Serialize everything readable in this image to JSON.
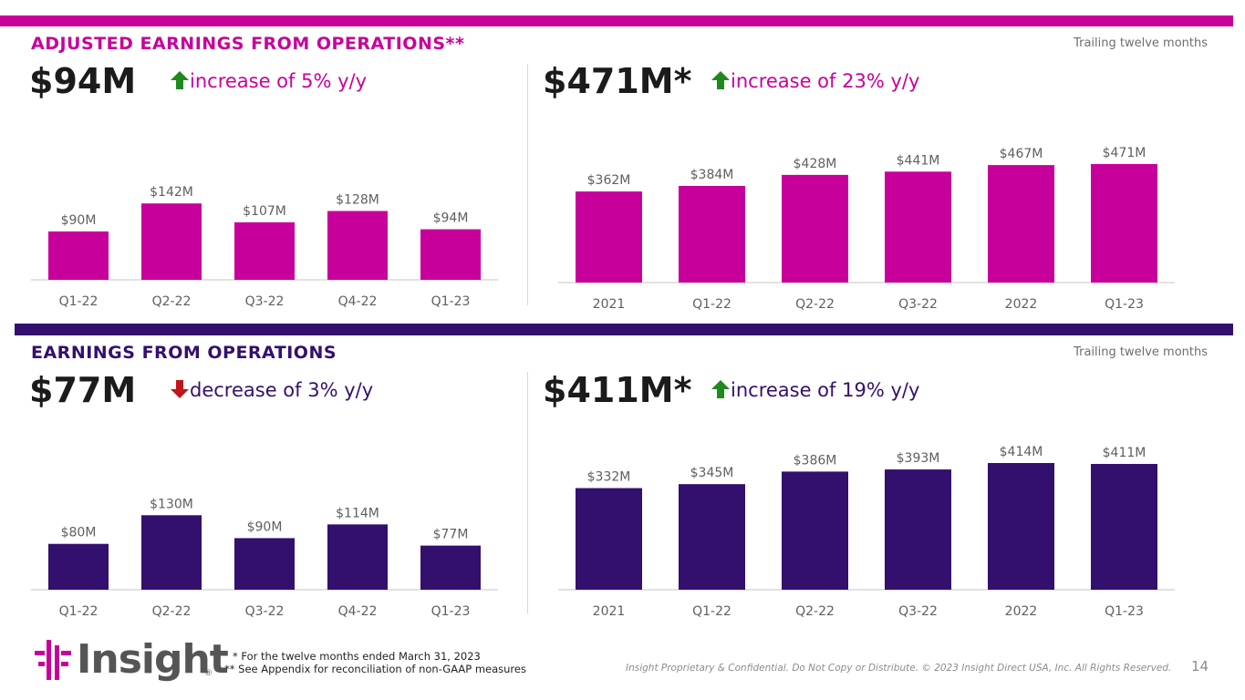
{
  "colors": {
    "magenta": "#c8009b",
    "purple": "#33106e",
    "up": "#1e8a1e",
    "down": "#c0171a"
  },
  "sections": [
    {
      "heading": "ADJUSTED EARNINGS FROM OPERATIONS**",
      "trailing_label": "Trailing twelve months",
      "quarterly": {
        "big_value": "$94M",
        "change_text": "increase of 5% y/y",
        "direction": "up"
      },
      "ttm": {
        "big_value": "$471M*",
        "change_text": "increase of 23% y/y",
        "direction": "up"
      }
    },
    {
      "heading": "EARNINGS FROM OPERATIONS",
      "trailing_label": "Trailing twelve months",
      "quarterly": {
        "big_value": "$77M",
        "change_text": "decrease of 3% y/y",
        "direction": "down"
      },
      "ttm": {
        "big_value": "$411M*",
        "change_text": "increase of 19% y/y",
        "direction": "up"
      }
    }
  ],
  "chart_data": [
    {
      "type": "bar",
      "title": "Adjusted earnings from operations (quarterly)",
      "categories": [
        "Q1-22",
        "Q2-22",
        "Q3-22",
        "Q4-22",
        "Q1-23"
      ],
      "values": [
        90,
        142,
        107,
        128,
        94
      ],
      "labels": [
        "$90M",
        "$142M",
        "$107M",
        "$128M",
        "$94M"
      ],
      "ylim": [
        0,
        200
      ],
      "color": "#c8009b"
    },
    {
      "type": "bar",
      "title": "Adjusted earnings from operations (trailing twelve months)",
      "categories": [
        "2021",
        "Q1-22",
        "Q2-22",
        "Q3-22",
        "2022",
        "Q1-23"
      ],
      "values": [
        362,
        384,
        428,
        441,
        467,
        471
      ],
      "labels": [
        "$362M",
        "$384M",
        "$428M",
        "$441M",
        "$467M",
        "$471M"
      ],
      "ylim": [
        0,
        471
      ],
      "color": "#c8009b"
    },
    {
      "type": "bar",
      "title": "Earnings from operations (quarterly)",
      "categories": [
        "Q1-22",
        "Q2-22",
        "Q3-22",
        "Q4-22",
        "Q1-23"
      ],
      "values": [
        80,
        130,
        90,
        114,
        77
      ],
      "labels": [
        "$80M",
        "$130M",
        "$90M",
        "$114M",
        "$77M"
      ],
      "ylim": [
        0,
        175
      ],
      "color": "#33106e"
    },
    {
      "type": "bar",
      "title": "Earnings from operations (trailing twelve months)",
      "categories": [
        "2021",
        "Q1-22",
        "Q2-22",
        "Q3-22",
        "2022",
        "Q1-23"
      ],
      "values": [
        332,
        345,
        386,
        393,
        414,
        411
      ],
      "labels": [
        "$332M",
        "$345M",
        "$386M",
        "$393M",
        "$414M",
        "$411M"
      ],
      "ylim": [
        0,
        414
      ],
      "color": "#33106e"
    }
  ],
  "footer": {
    "logo_text": "Insight",
    "logo_mark": "®",
    "note1": "* For the twelve months ended March 31, 2023",
    "note2": "** See Appendix for reconciliation of non-GAAP measures",
    "legal": "Insight Proprietary & Confidential. Do Not Copy or Distribute. © 2023 Insight Direct USA, Inc. All Rights Reserved.",
    "page_number": "14"
  }
}
